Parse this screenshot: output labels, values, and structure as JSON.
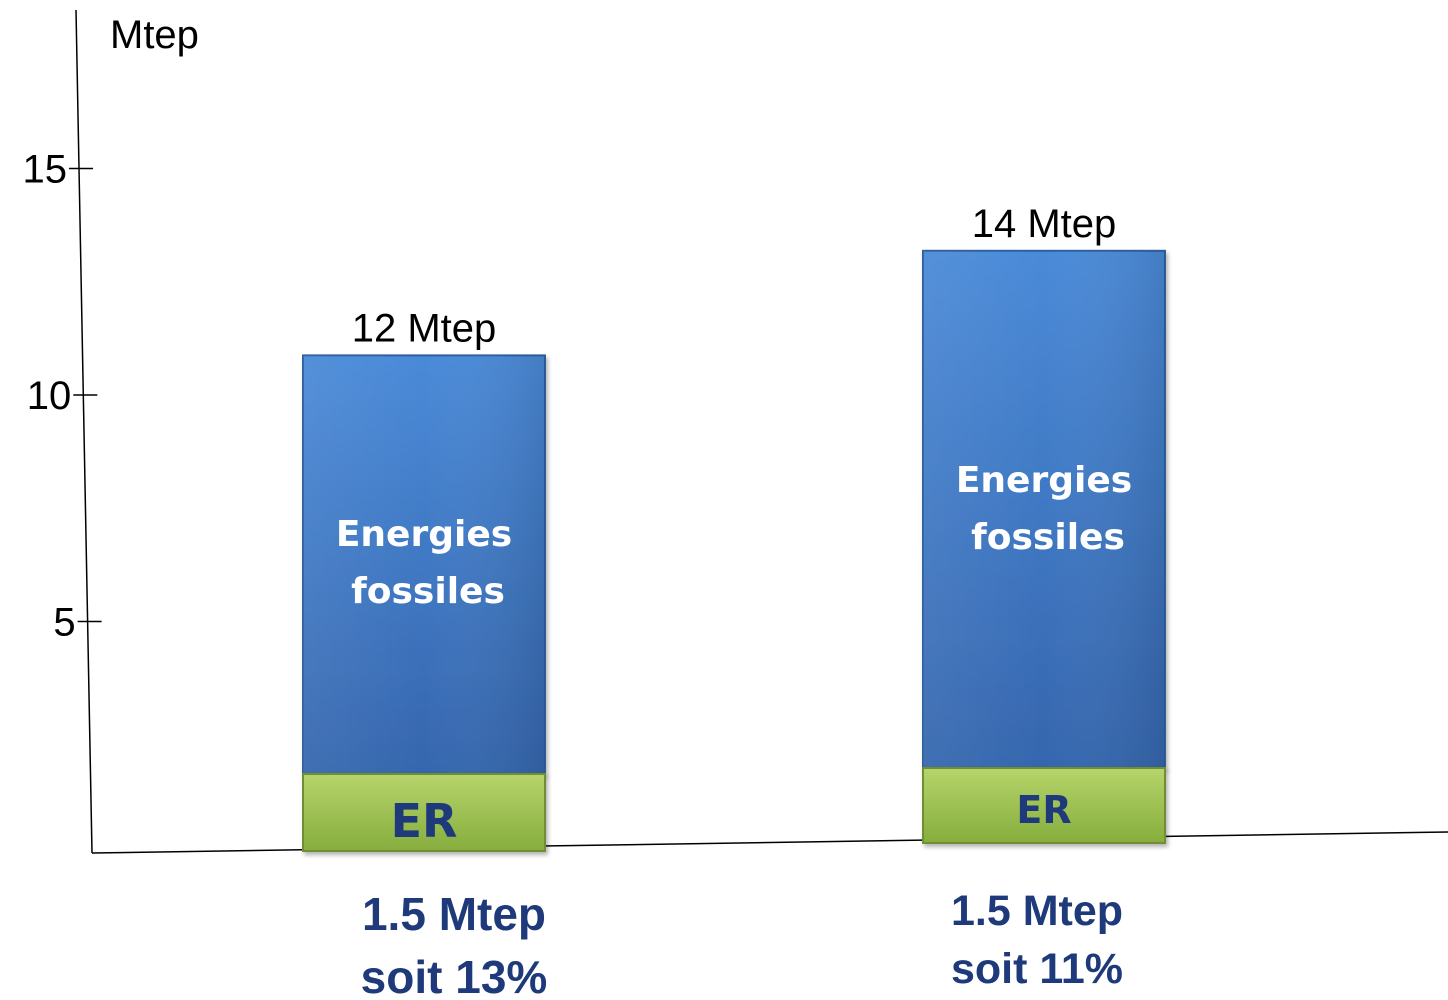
{
  "chart_data": {
    "type": "bar",
    "stacked": true,
    "ylabel": "Mtep",
    "ylim": [
      0,
      17
    ],
    "yticks": [
      5,
      10,
      15
    ],
    "grid": false,
    "bars": [
      {
        "total": 12,
        "total_label": "12 Mtep",
        "segments": [
          {
            "label": "ER",
            "value": 1.5,
            "color": "#9bbb59"
          },
          {
            "label": "Energies fossiles",
            "value": 10.5,
            "color": "#4a86d4"
          }
        ],
        "sub_label_line1": "1.5 Mtep",
        "sub_label_line2": "soit 13%"
      },
      {
        "total": 14,
        "total_label": "14 Mtep",
        "segments": [
          {
            "label": "ER",
            "value": 1.5,
            "color": "#9bbb59"
          },
          {
            "label": "Energies fossiles",
            "value": 12.5,
            "color": "#4a86d4"
          }
        ],
        "sub_label_line1": "1.5 Mtep",
        "sub_label_line2": "soit 11%"
      }
    ],
    "colors": {
      "fossil": "#4a86d4",
      "fossil_dark": "#2f63a8",
      "renewable": "#9bbb59",
      "renewable_dark": "#7a9a3c",
      "label_dark_blue": "#1f3a7a",
      "segment_text": "#ffffff"
    }
  }
}
